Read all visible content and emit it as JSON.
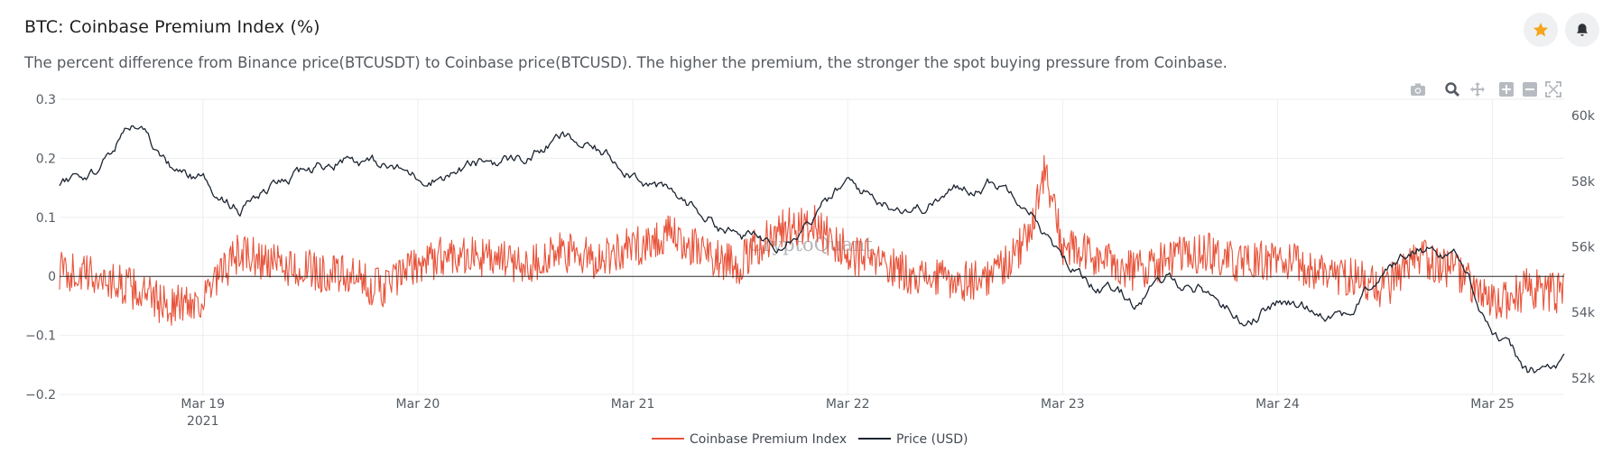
{
  "header": {
    "title": "BTC: Coinbase Premium Index (%)",
    "subtitle": "The percent difference from Binance price(BTCUSDT) to Coinbase price(BTCUSD). The higher the premium, the stronger the spot buying pressure from Coinbase."
  },
  "actions": {
    "favorite_icon": "star-icon",
    "alert_icon": "bell-icon",
    "favorite_color": "#f4a51c"
  },
  "toolbar": {
    "icons": [
      "camera-icon",
      "zoom-icon",
      "pan-icon",
      "zoom-in-icon",
      "zoom-out-icon",
      "autoscale-icon"
    ]
  },
  "watermark": "CryptoQuant",
  "chart_data": {
    "type": "line",
    "title": "BTC: Coinbase Premium Index (%)",
    "x_axis": {
      "type": "date",
      "range": [
        "2021-03-18 08:00",
        "2021-03-25 08:00"
      ],
      "ticks": [
        {
          "date": "2021-03-19",
          "label": "Mar 19",
          "sub": "2021"
        },
        {
          "date": "2021-03-20",
          "label": "Mar 20"
        },
        {
          "date": "2021-03-21",
          "label": "Mar 21"
        },
        {
          "date": "2021-03-22",
          "label": "Mar 22"
        },
        {
          "date": "2021-03-23",
          "label": "Mar 23"
        },
        {
          "date": "2021-03-24",
          "label": "Mar 24"
        },
        {
          "date": "2021-03-25",
          "label": "Mar 25"
        }
      ]
    },
    "y_left": {
      "range": [
        -0.2,
        0.3
      ],
      "ticks": [
        {
          "v": 0.3,
          "label": "0.3"
        },
        {
          "v": 0.2,
          "label": "0.2"
        },
        {
          "v": 0.1,
          "label": "0.1"
        },
        {
          "v": 0,
          "label": "0"
        },
        {
          "v": -0.1,
          "label": "−0.1"
        },
        {
          "v": -0.2,
          "label": "−0.2"
        }
      ]
    },
    "y_right": {
      "range": [
        51500,
        60500
      ],
      "ticks": [
        {
          "v": 60000,
          "label": "60k"
        },
        {
          "v": 58000,
          "label": "58k"
        },
        {
          "v": 56000,
          "label": "56k"
        },
        {
          "v": 54000,
          "label": "54k"
        },
        {
          "v": 52000,
          "label": "52k"
        }
      ]
    },
    "grid": true,
    "legend_position": "bottom-center",
    "series": [
      {
        "name": "Coinbase Premium Index",
        "axis": "left",
        "color": "#e8533a",
        "x": [
          "03-18 08:00",
          "03-18 12:00",
          "03-18 16:00",
          "03-18 20:00",
          "03-19 00:00",
          "03-19 04:00",
          "03-19 08:00",
          "03-19 12:00",
          "03-19 16:00",
          "03-19 20:00",
          "03-20 00:00",
          "03-20 04:00",
          "03-20 08:00",
          "03-20 12:00",
          "03-20 16:00",
          "03-20 20:00",
          "03-21 00:00",
          "03-21 04:00",
          "03-21 08:00",
          "03-21 12:00",
          "03-21 16:00",
          "03-21 20:00",
          "03-22 00:00",
          "03-22 04:00",
          "03-22 08:00",
          "03-22 12:00",
          "03-22 16:00",
          "03-22 20:00",
          "03-22 22:00",
          "03-23 00:00",
          "03-23 04:00",
          "03-23 08:00",
          "03-23 12:00",
          "03-23 16:00",
          "03-23 20:00",
          "03-24 00:00",
          "03-24 04:00",
          "03-24 08:00",
          "03-24 12:00",
          "03-24 16:00",
          "03-24 20:00",
          "03-25 00:00",
          "03-25 04:00",
          "03-25 08:00"
        ],
        "values": [
          0.01,
          0.0,
          -0.02,
          -0.05,
          -0.04,
          0.04,
          0.02,
          0.01,
          0.0,
          -0.02,
          0.02,
          0.04,
          0.03,
          0.02,
          0.04,
          0.03,
          0.05,
          0.07,
          0.04,
          0.02,
          0.08,
          0.09,
          0.04,
          0.02,
          0.0,
          -0.01,
          0.0,
          0.06,
          0.18,
          0.05,
          0.03,
          0.01,
          0.03,
          0.04,
          0.02,
          0.03,
          0.01,
          0.0,
          -0.02,
          0.03,
          0.01,
          -0.05,
          -0.02,
          -0.03
        ]
      },
      {
        "name": "Price (USD)",
        "axis": "right",
        "color": "#1c2430",
        "x": [
          "03-18 08:00",
          "03-18 12:00",
          "03-18 16:00",
          "03-18 20:00",
          "03-19 00:00",
          "03-19 04:00",
          "03-19 08:00",
          "03-19 12:00",
          "03-19 16:00",
          "03-19 20:00",
          "03-20 00:00",
          "03-20 04:00",
          "03-20 08:00",
          "03-20 12:00",
          "03-20 16:00",
          "03-20 20:00",
          "03-21 00:00",
          "03-21 04:00",
          "03-21 08:00",
          "03-21 12:00",
          "03-21 16:00",
          "03-21 20:00",
          "03-22 00:00",
          "03-22 04:00",
          "03-22 08:00",
          "03-22 12:00",
          "03-22 16:00",
          "03-22 20:00",
          "03-23 00:00",
          "03-23 04:00",
          "03-23 08:00",
          "03-23 12:00",
          "03-23 16:00",
          "03-23 20:00",
          "03-24 00:00",
          "03-24 04:00",
          "03-24 08:00",
          "03-24 12:00",
          "03-24 16:00",
          "03-24 20:00",
          "03-25 00:00",
          "03-25 04:00",
          "03-25 08:00"
        ],
        "values": [
          57950,
          58300,
          59800,
          58400,
          58000,
          57200,
          57800,
          58300,
          58800,
          58500,
          58100,
          58300,
          58600,
          58700,
          59300,
          58900,
          58400,
          57600,
          57000,
          56300,
          56200,
          57000,
          57900,
          57400,
          57200,
          57700,
          58000,
          57500,
          55500,
          54800,
          54300,
          55000,
          54700,
          53800,
          54300,
          54100,
          54000,
          55300,
          56000,
          55800,
          53500,
          52100,
          52400
        ]
      }
    ]
  }
}
